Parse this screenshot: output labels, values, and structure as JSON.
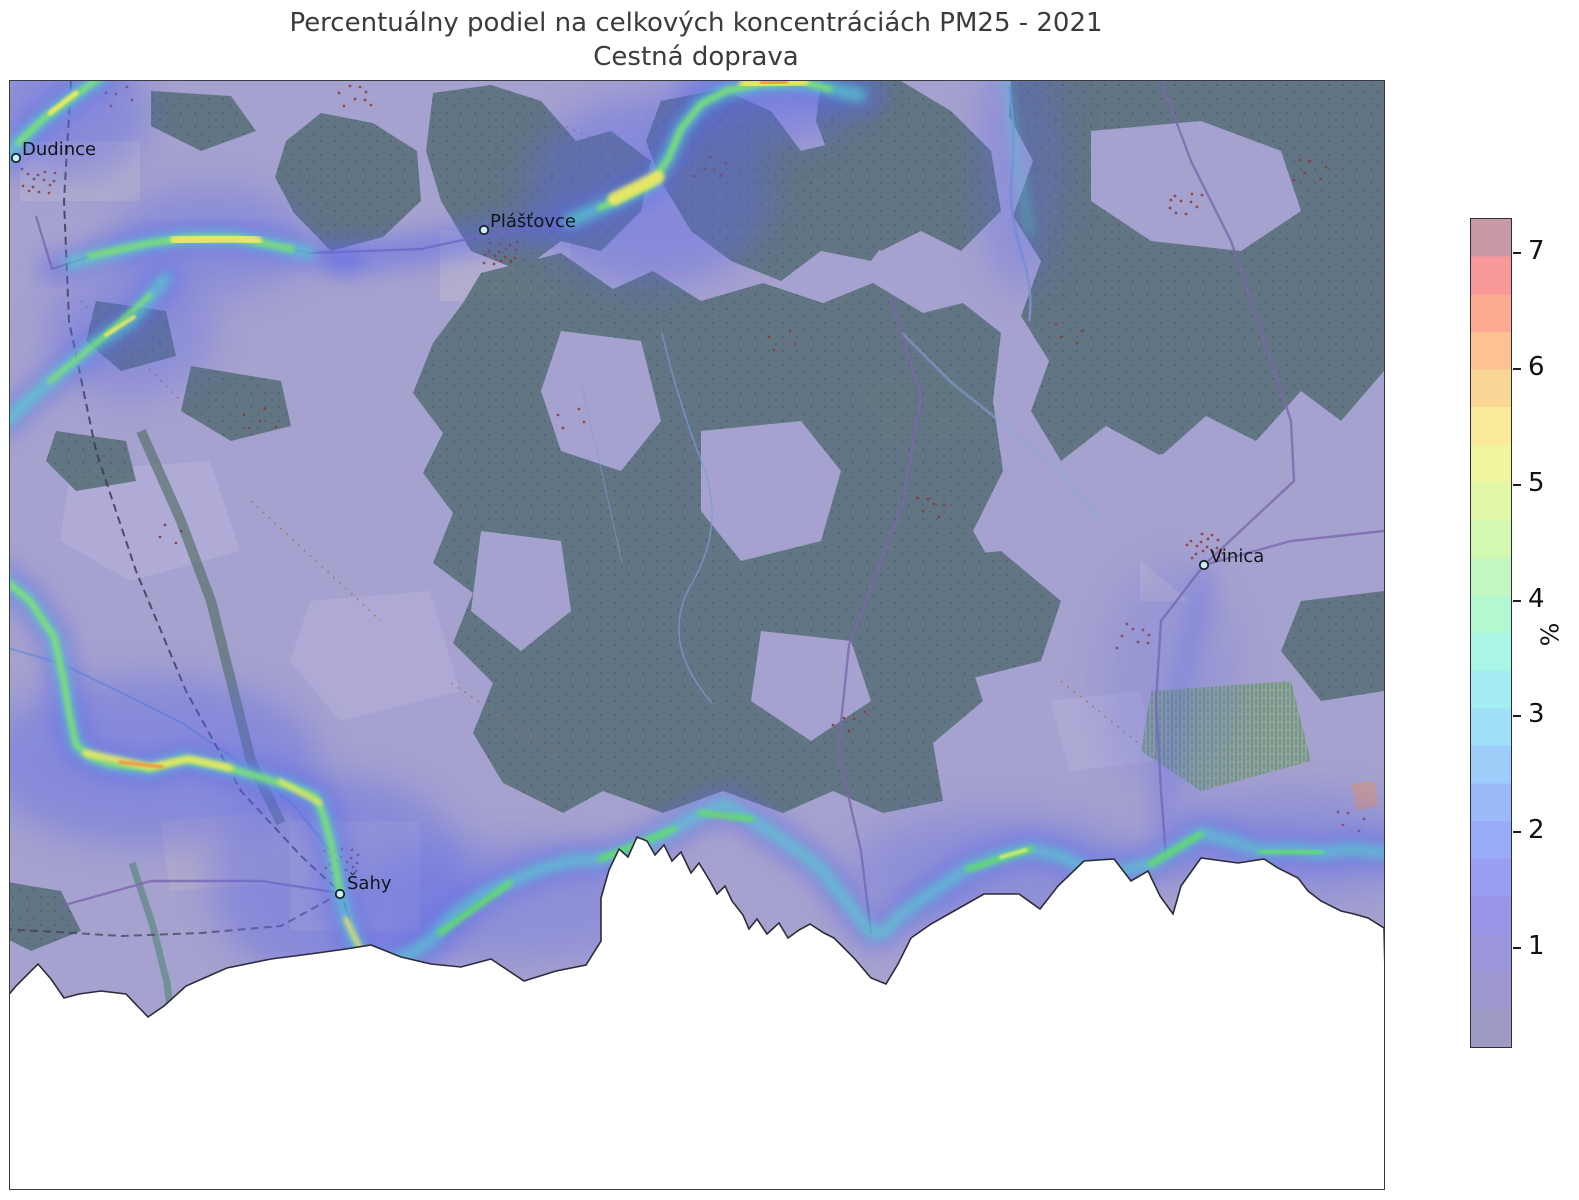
{
  "title": {
    "line1": "Percentuálny podiel na celkových koncentráciách PM25 - 2021",
    "line2": "Cestná doprava"
  },
  "map": {
    "towns": [
      {
        "name": "Dudince"
      },
      {
        "name": "Plášťovce"
      },
      {
        "name": "Vinica"
      },
      {
        "name": "Šahy"
      }
    ]
  },
  "colorbar": {
    "unit": "%",
    "ticks": [
      {
        "label": "7"
      },
      {
        "label": "6"
      },
      {
        "label": "5"
      },
      {
        "label": "4"
      },
      {
        "label": "3"
      },
      {
        "label": "2"
      },
      {
        "label": "1"
      }
    ],
    "colors_bottom_to_top": [
      "#9d9ac3",
      "#9c98cd",
      "#9b95da",
      "#9a94e7",
      "#999ff2",
      "#99abf6",
      "#9bbaf8",
      "#9dcdf8",
      "#9fdff7",
      "#a3edf3",
      "#a9f6e4",
      "#b4f8d2",
      "#c2f8c0",
      "#d2f8b1",
      "#e3f8a7",
      "#f0f69f",
      "#f8ea9a",
      "#fbd795",
      "#fcc292",
      "#fcab93",
      "#f9999c",
      "#c79aa6"
    ],
    "heat_scale": {
      "low": "#9d9ac3",
      "mid": "#52d8cf",
      "high": "#f2ea5e",
      "max": "#e8483a"
    }
  }
}
